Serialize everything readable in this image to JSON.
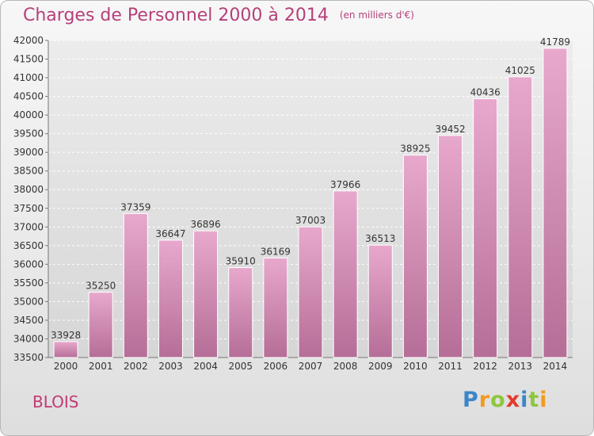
{
  "title": "Charges de Personnel 2000 à 2014",
  "subtitle": "(en milliers d'€)",
  "city": "BLOIS",
  "logo": {
    "text": "Proxiti",
    "letters": [
      {
        "char": "P",
        "color": "#3a86c8"
      },
      {
        "char": "r",
        "color": "#f39a1e"
      },
      {
        "char": "o",
        "color": "#8dc63f"
      },
      {
        "char": "x",
        "color": "#e23b2e"
      },
      {
        "char": "i",
        "color": "#3a86c8"
      },
      {
        "char": "t",
        "color": "#8dc63f"
      },
      {
        "char": "i",
        "color": "#f39a1e"
      }
    ]
  },
  "colors": {
    "bar_light": "#e8a8cd",
    "bar_dark": "#b56e97",
    "title": "#b5407a"
  },
  "chart_data": {
    "type": "bar",
    "categories": [
      "2000",
      "2001",
      "2002",
      "2003",
      "2004",
      "2005",
      "2006",
      "2007",
      "2008",
      "2009",
      "2010",
      "2011",
      "2012",
      "2013",
      "2014"
    ],
    "values": [
      33928,
      35250,
      37359,
      36647,
      36896,
      35910,
      36169,
      37003,
      37966,
      36513,
      38925,
      39452,
      40436,
      41025,
      41789
    ],
    "ylim": [
      33500,
      42000
    ],
    "yticks": [
      33500,
      34000,
      34500,
      35000,
      35500,
      36000,
      36500,
      37000,
      37500,
      38000,
      38500,
      39000,
      39500,
      40000,
      40500,
      41000,
      41500,
      42000
    ],
    "grid": true
  }
}
